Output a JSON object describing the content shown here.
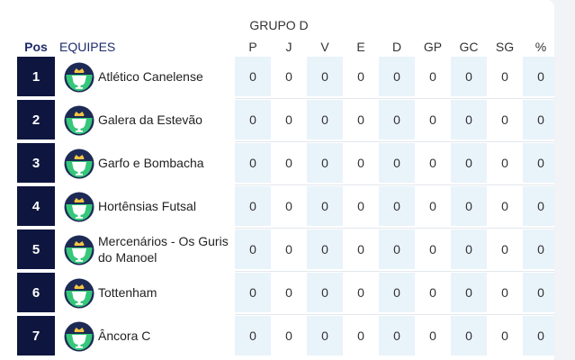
{
  "group_title": "GRUPO D",
  "headers": {
    "pos": "Pos",
    "team": "EQUIPES",
    "stats": [
      "P",
      "J",
      "V",
      "E",
      "D",
      "GP",
      "GC",
      "SG",
      "%"
    ]
  },
  "rows": [
    {
      "pos": "1",
      "team": "Atlético Canelense",
      "stats": [
        "0",
        "0",
        "0",
        "0",
        "0",
        "0",
        "0",
        "0",
        "0"
      ]
    },
    {
      "pos": "2",
      "team": "Galera da Estevão",
      "stats": [
        "0",
        "0",
        "0",
        "0",
        "0",
        "0",
        "0",
        "0",
        "0"
      ]
    },
    {
      "pos": "3",
      "team": "Garfo e Bombacha",
      "stats": [
        "0",
        "0",
        "0",
        "0",
        "0",
        "0",
        "0",
        "0",
        "0"
      ]
    },
    {
      "pos": "4",
      "team": "Hortênsias Futsal",
      "stats": [
        "0",
        "0",
        "0",
        "0",
        "0",
        "0",
        "0",
        "0",
        "0"
      ]
    },
    {
      "pos": "5",
      "team": "Mercenários - Os Guris do Manoel",
      "stats": [
        "0",
        "0",
        "0",
        "0",
        "0",
        "0",
        "0",
        "0",
        "0"
      ]
    },
    {
      "pos": "6",
      "team": "Tottenham",
      "stats": [
        "0",
        "0",
        "0",
        "0",
        "0",
        "0",
        "0",
        "0",
        "0"
      ]
    },
    {
      "pos": "7",
      "team": "Âncora C",
      "stats": [
        "0",
        "0",
        "0",
        "0",
        "0",
        "0",
        "0",
        "0",
        "0"
      ]
    }
  ],
  "logo_icon": "trophy-crown-logo-icon",
  "colors": {
    "pos_bg": "#0e1640",
    "header_text": "#1e2b6b",
    "stat_shade": "#e9f3fa",
    "logo_green": "#35c77a"
  }
}
